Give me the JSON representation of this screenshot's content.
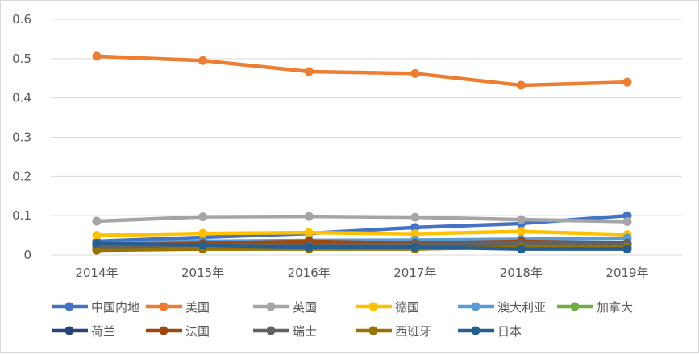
{
  "chart_data": {
    "type": "line",
    "categories": [
      "2014年",
      "2015年",
      "2016年",
      "2017年",
      "2018年",
      "2019年"
    ],
    "ylim": [
      0,
      0.6
    ],
    "yticks": [
      "0",
      "0.1",
      "0.2",
      "0.3",
      "0.4",
      "0.5",
      "0.6"
    ],
    "grid": true,
    "legend_position": "bottom",
    "series": [
      {
        "name": "中国内地",
        "color": "#4472C4",
        "values": [
          0.035,
          0.045,
          0.055,
          0.07,
          0.08,
          0.1
        ]
      },
      {
        "name": "美国",
        "color": "#ED7D31",
        "values": [
          0.506,
          0.495,
          0.467,
          0.462,
          0.432,
          0.44
        ]
      },
      {
        "name": "英国",
        "color": "#A5A5A5",
        "values": [
          0.086,
          0.097,
          0.098,
          0.096,
          0.09,
          0.085
        ]
      },
      {
        "name": "德国",
        "color": "#FFC000",
        "values": [
          0.05,
          0.055,
          0.057,
          0.054,
          0.06,
          0.052
        ]
      },
      {
        "name": "澳大利亚",
        "color": "#5B9BD5",
        "values": [
          0.03,
          0.035,
          0.037,
          0.038,
          0.04,
          0.043
        ]
      },
      {
        "name": "加拿大",
        "color": "#70AD47",
        "values": [
          0.02,
          0.022,
          0.023,
          0.023,
          0.025,
          0.028
        ]
      },
      {
        "name": "荷兰",
        "color": "#264478",
        "values": [
          0.025,
          0.027,
          0.026,
          0.027,
          0.028,
          0.027
        ]
      },
      {
        "name": "法国",
        "color": "#9E480E",
        "values": [
          0.025,
          0.03,
          0.035,
          0.03,
          0.035,
          0.03
        ]
      },
      {
        "name": "瑞士",
        "color": "#636363",
        "values": [
          0.02,
          0.025,
          0.025,
          0.027,
          0.03,
          0.028
        ]
      },
      {
        "name": "西班牙",
        "color": "#997300",
        "values": [
          0.012,
          0.015,
          0.015,
          0.015,
          0.02,
          0.02
        ]
      },
      {
        "name": "日本",
        "color": "#255E91",
        "values": [
          0.03,
          0.025,
          0.02,
          0.02,
          0.015,
          0.015
        ]
      }
    ]
  }
}
